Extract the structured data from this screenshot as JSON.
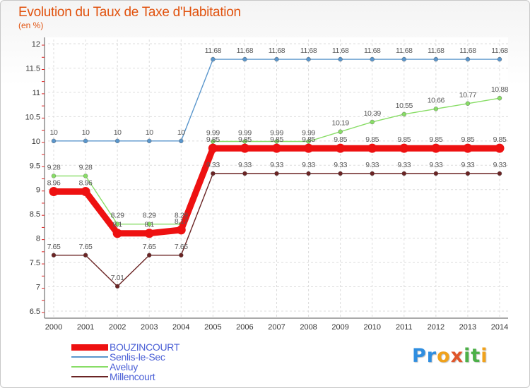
{
  "title": "Evolution du Taux de Taxe d'Habitation",
  "subtitle": "(en %)",
  "logo": "Proxiti",
  "chart_data": {
    "type": "line",
    "title": "Evolution du Taux de Taxe d'Habitation",
    "subtitle": "(en %)",
    "x": [
      2000,
      2001,
      2002,
      2003,
      2004,
      2005,
      2006,
      2007,
      2008,
      2009,
      2010,
      2011,
      2012,
      2013,
      2014
    ],
    "ylim": [
      6.5,
      12
    ],
    "yticks": [
      "6.5",
      "7",
      "7.5",
      "8",
      "8.5",
      "9",
      "9.5",
      "10",
      "10.5",
      "11",
      "11.5",
      "12"
    ],
    "grid": true,
    "legend_position": "bottom-left",
    "series": [
      {
        "name": "BOUZINCOURT",
        "color": "#ee1111",
        "values": [
          8.96,
          8.96,
          8.1,
          8.1,
          8.17,
          9.85,
          9.85,
          9.85,
          9.85,
          9.85,
          9.85,
          9.85,
          9.85,
          9.85,
          9.85
        ],
        "labels": [
          "8.96",
          "8.96",
          "8.1",
          "8.1",
          "8.17",
          "9.85",
          "9.85",
          "9.85",
          "9.85",
          "9.85",
          "9.85",
          "9.85",
          "9.85",
          "9.85",
          "9.85"
        ]
      },
      {
        "name": "Senlis-le-Sec",
        "color": "#5a96cc",
        "values": [
          10,
          10,
          10,
          10,
          10,
          11.68,
          11.68,
          11.68,
          11.68,
          11.68,
          11.68,
          11.68,
          11.68,
          11.68,
          11.68
        ],
        "labels": [
          "10",
          "10",
          "10",
          "10",
          "10",
          "11.68",
          "11.68",
          "11.68",
          "11.68",
          "11.68",
          "11.68",
          "11.68",
          "11.68",
          "11.68",
          "11.68"
        ]
      },
      {
        "name": "Aveluy",
        "color": "#88dd66",
        "values": [
          9.28,
          9.28,
          8.29,
          8.29,
          8.29,
          9.99,
          9.99,
          9.99,
          9.99,
          10.19,
          10.39,
          10.55,
          10.66,
          10.77,
          10.88
        ],
        "labels": [
          "9.28",
          "9.28",
          "8.29",
          "8.29",
          "8.29",
          "9.99",
          "9.99",
          "9.99",
          "9.99",
          "10.19",
          "10.39",
          "10.55",
          "10.66",
          "10.77",
          "10.88"
        ]
      },
      {
        "name": "Millencourt",
        "color": "#6b2424",
        "values": [
          7.65,
          7.65,
          7.01,
          7.65,
          7.65,
          9.33,
          9.33,
          9.33,
          9.33,
          9.33,
          9.33,
          9.33,
          9.33,
          9.33,
          9.33
        ],
        "labels": [
          "7.65",
          "7.65",
          "7.01",
          "7.65",
          "7.65",
          "9.33",
          "9.33",
          "9.33",
          "9.33",
          "9.33",
          "9.33",
          "9.33",
          "9.33",
          "9.33",
          "9.33"
        ]
      }
    ]
  }
}
